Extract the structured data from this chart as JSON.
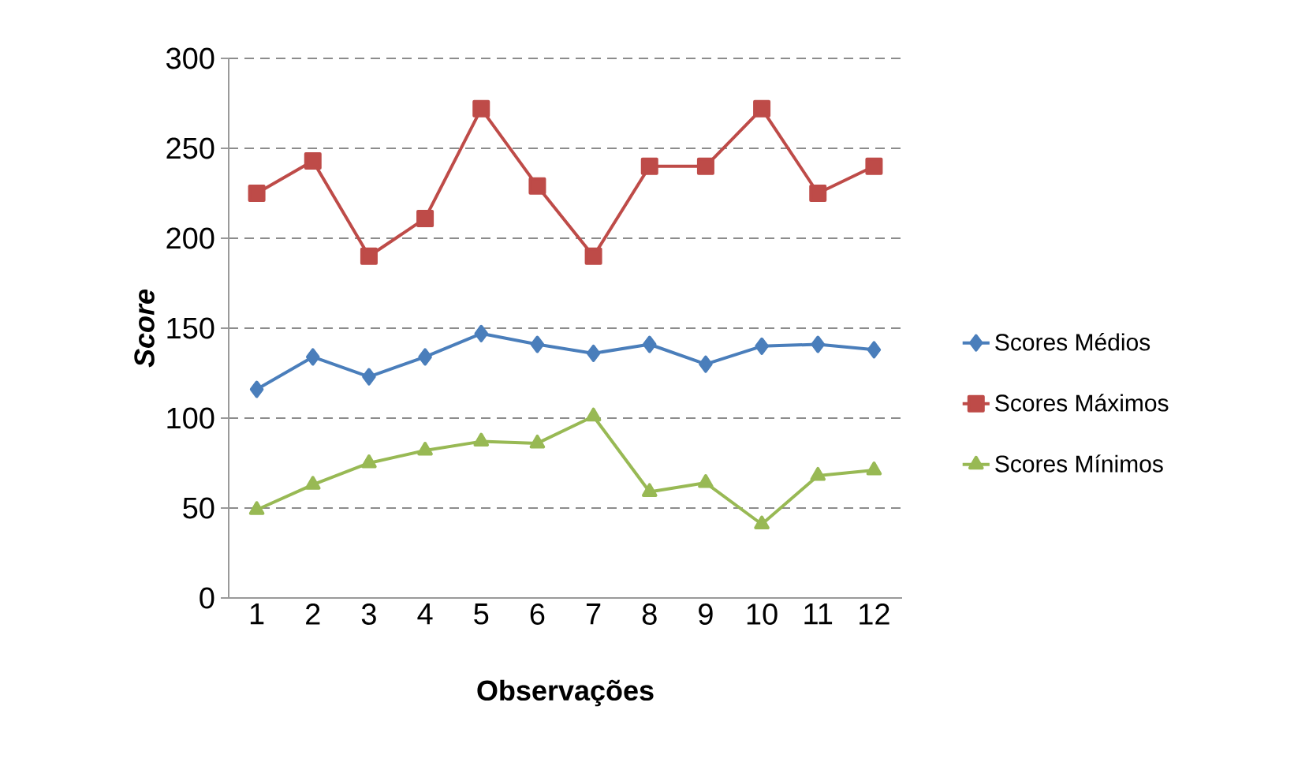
{
  "chart_data": {
    "type": "line",
    "xlabel": "Observações",
    "ylabel": "*Score*",
    "categories": [
      "1",
      "2",
      "3",
      "4",
      "5",
      "6",
      "7",
      "8",
      "9",
      "10",
      "11",
      "12"
    ],
    "series": [
      {
        "name": "Scores Médios",
        "color": "#4a7ebb",
        "marker": "diamond",
        "values": [
          116,
          134,
          123,
          134,
          147,
          141,
          136,
          141,
          130,
          140,
          141,
          138
        ]
      },
      {
        "name": "Scores Máximos",
        "color": "#be4b48",
        "marker": "square",
        "values": [
          225,
          243,
          190,
          211,
          272,
          229,
          190,
          240,
          240,
          272,
          225,
          240
        ]
      },
      {
        "name": "Scores Mínimos",
        "color": "#98b954",
        "marker": "triangle",
        "values": [
          49,
          63,
          75,
          82,
          87,
          86,
          101,
          59,
          64,
          41,
          68,
          71
        ]
      }
    ],
    "ylim": [
      0,
      300
    ],
    "yticks": [
      0,
      50,
      100,
      150,
      200,
      250,
      300
    ],
    "grid": "y",
    "legend": "right"
  }
}
